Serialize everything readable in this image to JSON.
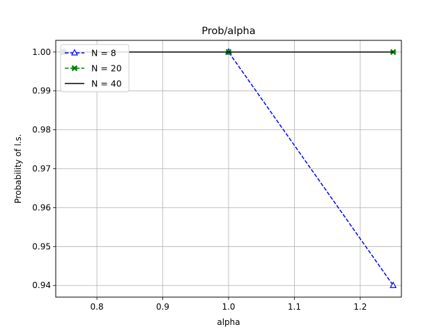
{
  "chart_data": {
    "type": "line",
    "title": "Prob/alpha",
    "xlabel": "alpha",
    "ylabel": "Probability of l.s.",
    "xlim": [
      0.7375,
      1.2625
    ],
    "ylim": [
      0.937,
      1.003
    ],
    "xticks": [
      0.8,
      0.9,
      1.0,
      1.1,
      1.2
    ],
    "xtick_labels": [
      "0.8",
      "0.9",
      "1.0",
      "1.1",
      "1.2"
    ],
    "yticks": [
      0.94,
      0.95,
      0.96,
      0.97,
      0.98,
      0.99,
      1.0
    ],
    "ytick_labels": [
      "0.94",
      "0.95",
      "0.96",
      "0.97",
      "0.98",
      "0.99",
      "1.00"
    ],
    "grid": true,
    "legend_position": "top-left",
    "series": [
      {
        "name": "N = 8",
        "x": [
          0.75,
          1.0,
          1.25
        ],
        "y": [
          1.0,
          1.0,
          0.94
        ],
        "color": "#0000ff",
        "line_style": "dashed",
        "marker": "triangle"
      },
      {
        "name": "N = 20",
        "x": [
          0.75,
          1.0,
          1.25
        ],
        "y": [
          1.0,
          1.0,
          1.0
        ],
        "color": "#008000",
        "line_style": "dashed",
        "marker": "x"
      },
      {
        "name": "N = 40",
        "x": [
          0.75,
          1.0,
          1.25
        ],
        "y": [
          1.0,
          1.0,
          1.0
        ],
        "color": "#000000",
        "line_style": "solid",
        "marker": "none"
      }
    ]
  }
}
